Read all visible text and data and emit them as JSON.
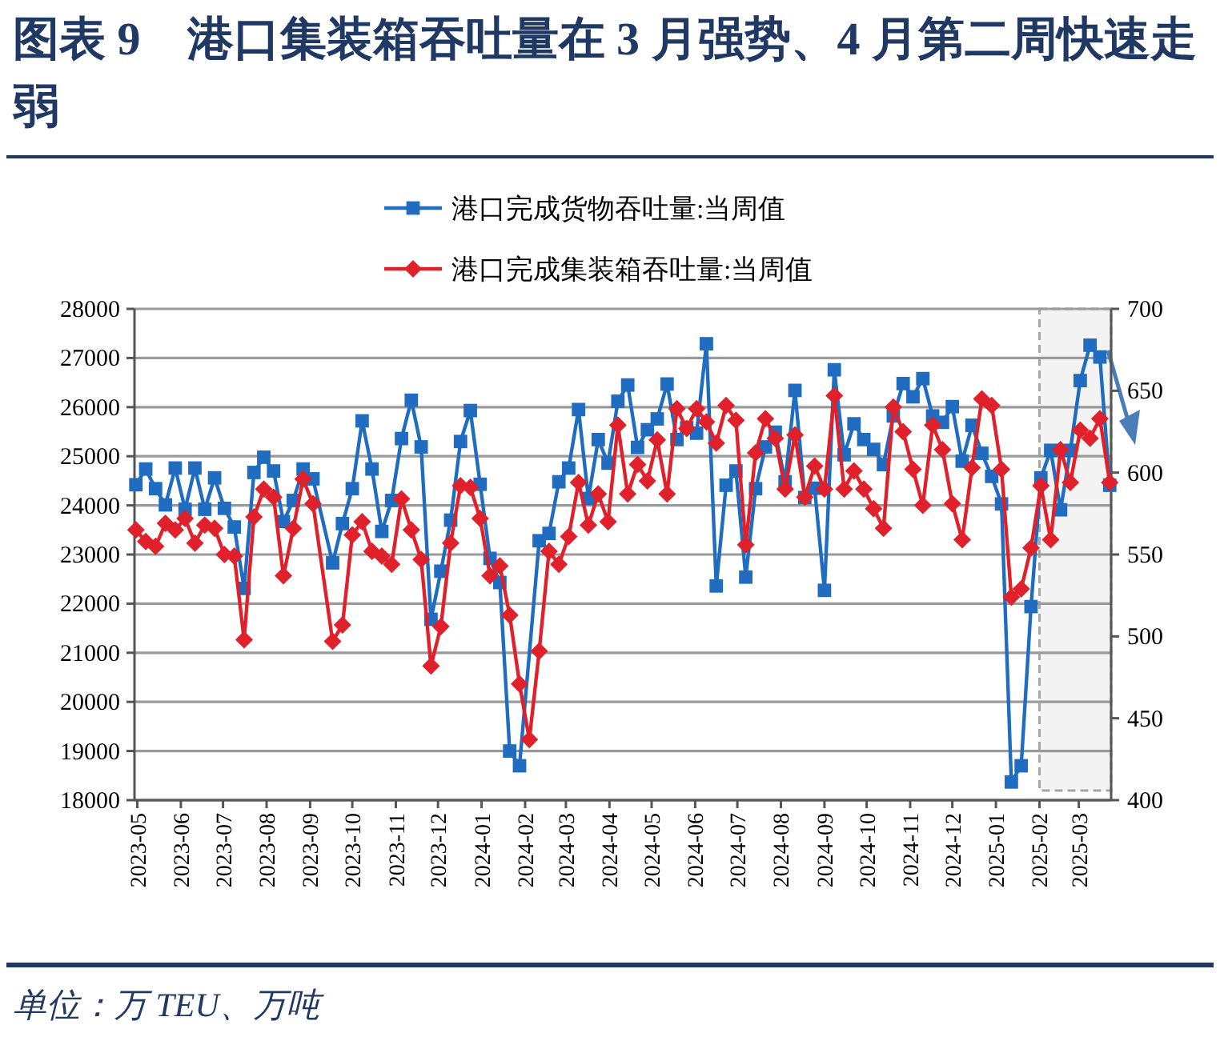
{
  "chart_data": {
    "type": "line",
    "title": "图表 9　港口集装箱吞吐量在 3 月强势、4 月第二周快速走弱",
    "series": [
      {
        "name": "港口完成货物吞吐量:当周值",
        "color": "#1f6cc1",
        "marker": "square",
        "x": [
          "2023-04-30",
          "2023-05-07",
          "2023-05-14",
          "2023-05-21",
          "2023-05-28",
          "2023-06-04",
          "2023-06-11",
          "2023-06-18",
          "2023-06-25",
          "2023-07-02",
          "2023-07-09",
          "2023-07-16",
          "2023-07-23",
          "2023-07-30",
          "2023-08-06",
          "2023-08-13",
          "2023-08-20",
          "2023-08-27",
          "2023-09-03",
          "2023-09-17",
          "2023-09-24",
          "2023-10-01",
          "2023-10-08",
          "2023-10-15",
          "2023-10-22",
          "2023-10-29",
          "2023-11-05",
          "2023-11-12",
          "2023-11-19",
          "2023-11-26",
          "2023-12-03",
          "2023-12-10",
          "2023-12-17",
          "2023-12-24",
          "2023-12-31",
          "2024-01-07",
          "2024-01-14",
          "2024-01-21",
          "2024-01-28",
          "2024-02-11",
          "2024-02-18",
          "2024-02-25",
          "2024-03-03",
          "2024-03-10",
          "2024-03-17",
          "2024-03-24",
          "2024-03-31",
          "2024-04-07",
          "2024-04-14",
          "2024-04-21",
          "2024-04-28",
          "2024-05-05",
          "2024-05-12",
          "2024-05-19",
          "2024-05-26",
          "2024-06-02",
          "2024-06-09",
          "2024-06-16",
          "2024-06-23",
          "2024-06-30",
          "2024-07-07",
          "2024-07-14",
          "2024-07-21",
          "2024-07-28",
          "2024-08-04",
          "2024-08-11",
          "2024-08-18",
          "2024-08-25",
          "2024-09-01",
          "2024-09-08",
          "2024-09-15",
          "2024-09-22",
          "2024-09-29",
          "2024-10-06",
          "2024-10-13",
          "2024-10-20",
          "2024-10-27",
          "2024-11-03",
          "2024-11-10",
          "2024-11-17",
          "2024-11-24",
          "2024-12-01",
          "2024-12-08",
          "2024-12-15",
          "2024-12-22",
          "2024-12-29",
          "2025-01-05",
          "2025-01-12",
          "2025-01-19",
          "2025-01-26",
          "2025-02-02",
          "2025-02-09",
          "2025-02-16",
          "2025-02-23",
          "2025-03-02",
          "2025-03-09",
          "2025-03-16",
          "2025-03-23"
        ],
        "values": [
          24420,
          24740,
          24340,
          24010,
          24760,
          23920,
          24760,
          23920,
          24560,
          23940,
          23560,
          22310,
          24670,
          24980,
          24700,
          23670,
          24100,
          24740,
          24540,
          22830,
          23630,
          24340,
          25720,
          24740,
          23470,
          24100,
          25360,
          26140,
          25190,
          21680,
          22660,
          23700,
          25300,
          25930,
          24430,
          22920,
          22430,
          19000,
          18700,
          23280,
          23430,
          24480,
          24760,
          25950,
          24140,
          25340,
          24860,
          26120,
          26450,
          25180,
          25540,
          25760,
          26470,
          25340,
          25580,
          25470,
          27290,
          22360,
          24410,
          24700,
          22540,
          24340,
          25190,
          25490,
          24480,
          26340,
          24160,
          24350,
          22270,
          26760,
          25030,
          25660,
          25340,
          25140,
          24830,
          25820,
          26480,
          26210,
          26580,
          25820,
          25690,
          26010,
          24900,
          25630,
          25060,
          24590,
          24030,
          18370,
          18700,
          21940,
          24560,
          25120,
          23910,
          25120,
          26540,
          27260,
          27020,
          24410
        ]
      },
      {
        "name": "港口完成集装箱吞吐量:当周值",
        "color": "#e0202a",
        "marker": "diamond",
        "axis": "y2",
        "x": [
          "2023-04-30",
          "2023-05-07",
          "2023-05-14",
          "2023-05-21",
          "2023-05-28",
          "2023-06-04",
          "2023-06-11",
          "2023-06-18",
          "2023-06-25",
          "2023-07-02",
          "2023-07-09",
          "2023-07-16",
          "2023-07-23",
          "2023-07-30",
          "2023-08-06",
          "2023-08-13",
          "2023-08-20",
          "2023-08-27",
          "2023-09-03",
          "2023-09-17",
          "2023-09-24",
          "2023-10-01",
          "2023-10-08",
          "2023-10-15",
          "2023-10-22",
          "2023-10-29",
          "2023-11-05",
          "2023-11-12",
          "2023-11-19",
          "2023-11-26",
          "2023-12-03",
          "2023-12-10",
          "2023-12-17",
          "2023-12-24",
          "2023-12-31",
          "2024-01-07",
          "2024-01-14",
          "2024-01-21",
          "2024-01-28",
          "2024-02-04",
          "2024-02-11",
          "2024-02-18",
          "2024-02-25",
          "2024-03-03",
          "2024-03-10",
          "2024-03-17",
          "2024-03-24",
          "2024-03-31",
          "2024-04-07",
          "2024-04-14",
          "2024-04-21",
          "2024-04-28",
          "2024-05-05",
          "2024-05-12",
          "2024-05-19",
          "2024-05-26",
          "2024-06-02",
          "2024-06-09",
          "2024-06-16",
          "2024-06-23",
          "2024-06-30",
          "2024-07-07",
          "2024-07-14",
          "2024-07-21",
          "2024-07-28",
          "2024-08-04",
          "2024-08-11",
          "2024-08-18",
          "2024-08-25",
          "2024-09-01",
          "2024-09-08",
          "2024-09-15",
          "2024-09-22",
          "2024-09-29",
          "2024-10-06",
          "2024-10-13",
          "2024-10-20",
          "2024-10-27",
          "2024-11-03",
          "2024-11-10",
          "2024-11-17",
          "2024-11-24",
          "2024-12-01",
          "2024-12-08",
          "2024-12-15",
          "2024-12-22",
          "2024-12-29",
          "2025-01-05",
          "2025-01-12",
          "2025-01-19",
          "2025-01-26",
          "2025-02-02",
          "2025-02-09",
          "2025-02-16",
          "2025-02-23",
          "2025-03-02",
          "2025-03-09",
          "2025-03-16",
          "2025-03-23"
        ],
        "values": [
          565,
          558,
          555,
          569,
          565,
          572,
          557,
          568,
          566,
          550,
          549,
          498,
          573,
          590,
          585,
          537,
          566,
          596,
          581,
          497,
          507,
          562,
          570,
          552,
          549,
          544,
          584,
          565,
          547,
          482,
          506,
          557,
          592,
          591,
          572,
          537,
          543,
          513,
          471,
          437,
          491,
          552,
          544,
          561,
          594,
          568,
          587,
          570,
          629,
          587,
          605,
          595,
          620,
          587,
          639,
          627,
          639,
          631,
          618,
          641,
          632,
          556,
          612,
          633,
          621,
          590,
          623,
          585,
          604,
          590,
          647,
          590,
          601,
          590,
          578,
          566,
          640,
          625,
          602,
          580,
          629,
          614,
          581,
          559,
          603,
          645,
          641,
          602,
          524,
          529,
          554,
          592,
          559,
          614,
          594,
          626,
          621,
          633,
          594
        ]
      }
    ],
    "xlim": [
      "2023-04-29",
      "2025-03-24"
    ],
    "xticks": [
      "2023-05",
      "2023-06",
      "2023-07",
      "2023-08",
      "2023-09",
      "2023-10",
      "2023-11",
      "2023-12",
      "2024-01",
      "2024-02",
      "2024-03",
      "2024-04",
      "2024-05",
      "2024-06",
      "2024-07",
      "2024-08",
      "2024-09",
      "2024-10",
      "2024-11",
      "2024-12",
      "2025-01",
      "2025-02",
      "2025-03"
    ],
    "ylim": [
      18000,
      28000
    ],
    "yticks": [
      18000,
      19000,
      20000,
      21000,
      22000,
      23000,
      24000,
      25000,
      26000,
      27000,
      28000
    ],
    "y2lim": [
      400,
      700
    ],
    "y2ticks": [
      400,
      450,
      500,
      550,
      600,
      650,
      700
    ],
    "bands": [
      {
        "axis": "x",
        "from": "2025-02-01",
        "to": "2025-03-24",
        "color": "#a6a6a6"
      }
    ],
    "grid": "y",
    "legend": "top",
    "line_style": "solid",
    "annotations": [
      "单位：万 TEU、万吨"
    ]
  }
}
